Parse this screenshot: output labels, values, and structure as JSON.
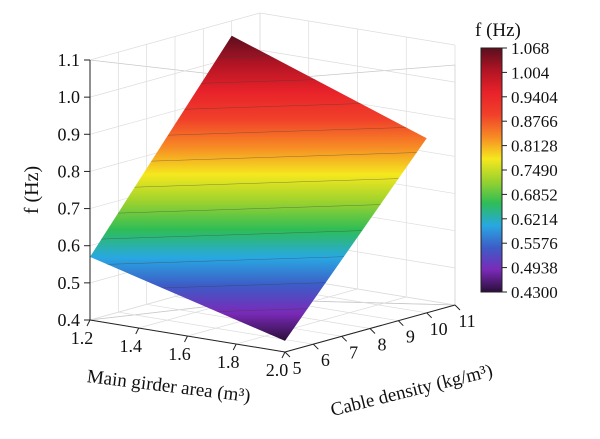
{
  "chart_data": {
    "type": "surface3d",
    "zlabel": "f (Hz)",
    "xlabel": "Main girder area (m³)",
    "ylabel": "Cable density (kg/m³)",
    "zlim": [
      0.4,
      1.1
    ],
    "xlim": [
      1.2,
      2.0
    ],
    "ylim": [
      5,
      11
    ],
    "z_ticks": [
      "0.4",
      "0.5",
      "0.6",
      "0.7",
      "0.8",
      "0.9",
      "1.0",
      "1.1"
    ],
    "x_ticks": [
      "1.2",
      "1.4",
      "1.6",
      "1.8",
      "2.0"
    ],
    "y_ticks": [
      "5",
      "6",
      "7",
      "8",
      "9",
      "10",
      "11"
    ],
    "surface_corners": [
      {
        "area": 1.2,
        "density": 5,
        "f": 0.57
      },
      {
        "area": 2.0,
        "density": 5,
        "f": 0.43
      },
      {
        "area": 2.0,
        "density": 10,
        "f": 0.87
      },
      {
        "area": 1.2,
        "density": 10,
        "f": 1.06
      }
    ],
    "colorbar": {
      "title": "f (Hz)",
      "labels": [
        "1.068",
        "1.004",
        "0.9404",
        "0.8766",
        "0.8128",
        "0.7490",
        "0.6852",
        "0.6214",
        "0.5576",
        "0.4938",
        "0.4300"
      ],
      "colors": [
        "#5a0f1e",
        "#b01424",
        "#e8222a",
        "#f0402a",
        "#f78a25",
        "#f5e81e",
        "#9bd22e",
        "#2ebd56",
        "#28a8e2",
        "#3d5cc7",
        "#7a2ab8",
        "#2a0e3a"
      ]
    },
    "grid": true
  }
}
